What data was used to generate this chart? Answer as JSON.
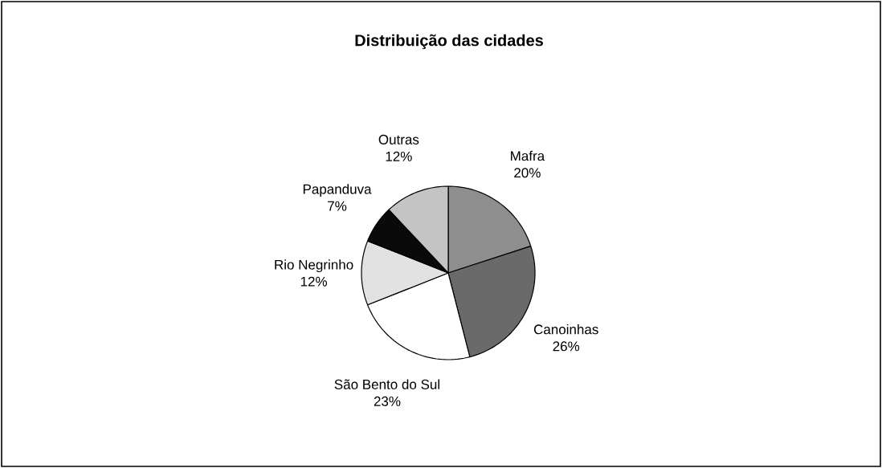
{
  "chart_data": {
    "type": "pie",
    "title": "Distribuição das cidades",
    "categories": [
      "Mafra",
      "Canoinhas",
      "São Bento do Sul",
      "Rio Negrinho",
      "Papanduva",
      "Outras"
    ],
    "values": [
      20,
      26,
      23,
      12,
      7,
      12
    ],
    "value_labels": [
      "20%",
      "26%",
      "23%",
      "12%",
      "7%",
      "12%"
    ],
    "colors": [
      "#8e8e8e",
      "#6a6a6a",
      "#ffffff",
      "#e2e2e2",
      "#0a0a0a",
      "#c4c4c4"
    ]
  }
}
